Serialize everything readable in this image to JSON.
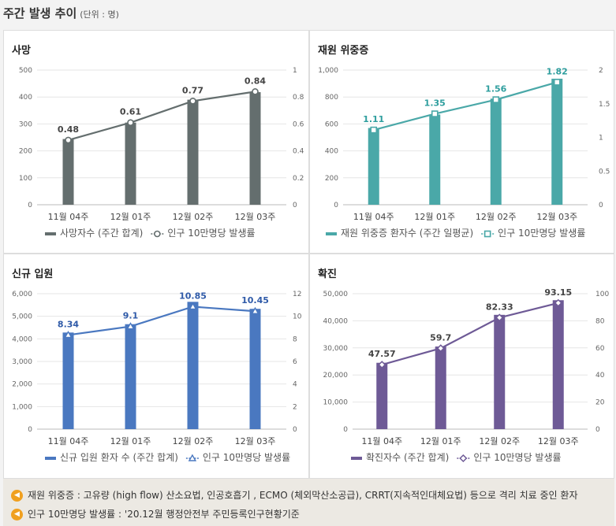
{
  "header": {
    "title": "주간 발생 추이",
    "unit": "(단위 : 명)"
  },
  "notes": [
    {
      "icon": "speaker-icon",
      "text": "재원 위중증 : 고유량 (high flow) 산소요법, 인공호흡기 , ECMO (체외막산소공급), CRRT(지속적인대체요법) 등으로 격리 치료 중인 환자"
    },
    {
      "icon": "speaker-icon",
      "text": "인구 10만명당 발생률 : '20.12월 행정안전부 주민등록인구현황기준"
    }
  ],
  "chart_data": [
    {
      "id": "deaths",
      "type": "bar",
      "title": "사망",
      "categories": [
        "11월 04주",
        "12월 01주",
        "12월 02주",
        "12월 03주"
      ],
      "series": [
        {
          "name": "사망자수 (주간 합계)",
          "type": "bar",
          "axis": "left",
          "values": [
            244,
            305,
            390,
            418
          ]
        },
        {
          "name": "인구 10만명당 발생률",
          "type": "line",
          "axis": "right",
          "marker": "circle",
          "values": [
            0.48,
            0.61,
            0.77,
            0.84
          ]
        }
      ],
      "left_axis": {
        "min": 0,
        "max": 500,
        "ticks": [
          "0",
          "100",
          "200",
          "300",
          "400",
          "500"
        ]
      },
      "right_axis": {
        "min": 0,
        "max": 1,
        "ticks": [
          "0",
          "0.2",
          "0.4",
          "0.6",
          "0.8",
          "1"
        ]
      },
      "colors": {
        "bar": "#646e6e",
        "line": "#646e6e",
        "label": "#444444"
      }
    },
    {
      "id": "critical",
      "type": "bar",
      "title": "재원 위중증",
      "categories": [
        "11월 04주",
        "12월 01주",
        "12월 02주",
        "12월 03주"
      ],
      "series": [
        {
          "name": "재원 위중증 환자수 (주간 일평균)",
          "type": "bar",
          "axis": "left",
          "values": [
            570,
            670,
            788,
            936
          ]
        },
        {
          "name": "인구 10만명당 발생률",
          "type": "line",
          "axis": "right",
          "marker": "square",
          "values": [
            1.11,
            1.35,
            1.56,
            1.82
          ]
        }
      ],
      "left_axis": {
        "min": 0,
        "max": 1000,
        "ticks": [
          "0",
          "200",
          "400",
          "600",
          "800",
          "1,000"
        ]
      },
      "right_axis": {
        "min": 0,
        "max": 2,
        "ticks": [
          "0",
          "0.5",
          "1",
          "1.5",
          "2"
        ]
      },
      "colors": {
        "bar": "#4aa8a8",
        "line": "#4aa8a8",
        "label": "#2e9e9e"
      }
    },
    {
      "id": "admissions",
      "type": "bar",
      "title": "신규 입원",
      "categories": [
        "11월 04주",
        "12월 01주",
        "12월 02주",
        "12월 03주"
      ],
      "series": [
        {
          "name": "신규 입원 환자 수 (주간 합계)",
          "type": "bar",
          "axis": "left",
          "values": [
            4280,
            4650,
            5640,
            5330
          ]
        },
        {
          "name": "인구 10만명당 발생률",
          "type": "line",
          "axis": "right",
          "marker": "triangle",
          "values": [
            8.34,
            9.1,
            10.85,
            10.45
          ]
        }
      ],
      "left_axis": {
        "min": 0,
        "max": 6000,
        "ticks": [
          "0",
          "1,000",
          "2,000",
          "3,000",
          "4,000",
          "5,000",
          "6,000"
        ]
      },
      "right_axis": {
        "min": 0,
        "max": 12,
        "ticks": [
          "0",
          "2",
          "4",
          "6",
          "8",
          "10",
          "12"
        ]
      },
      "colors": {
        "bar": "#4a78c0",
        "line": "#4a78c0",
        "label": "#2f5aa8"
      }
    },
    {
      "id": "confirmed",
      "type": "bar",
      "title": "확진",
      "categories": [
        "11월 04주",
        "12월 01주",
        "12월 02주",
        "12월 03주"
      ],
      "series": [
        {
          "name": "확진자수 (주간 합계)",
          "type": "bar",
          "axis": "left",
          "values": [
            24500,
            30500,
            42200,
            47600
          ]
        },
        {
          "name": "인구 10만명당 발생률",
          "type": "line",
          "axis": "right",
          "marker": "diamond",
          "values": [
            47.57,
            59.7,
            82.33,
            93.15
          ]
        }
      ],
      "left_axis": {
        "min": 0,
        "max": 50000,
        "ticks": [
          "0",
          "10,000",
          "20,000",
          "30,000",
          "40,000",
          "50,000"
        ]
      },
      "right_axis": {
        "min": 0,
        "max": 100,
        "ticks": [
          "0",
          "20",
          "40",
          "60",
          "80",
          "100"
        ]
      },
      "colors": {
        "bar": "#6e5a96",
        "line": "#6e5a96",
        "label": "#444444"
      }
    }
  ]
}
